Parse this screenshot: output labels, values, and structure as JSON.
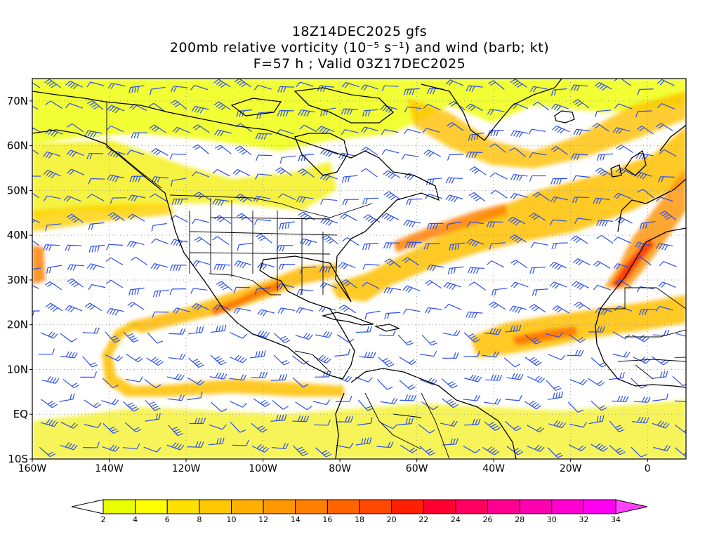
{
  "title": {
    "line1": "18Z14DEC2025 gfs",
    "line2": "200mb relative vorticity (10⁻⁵ s⁻¹) and wind (barb; kt)",
    "line3": "F=57 h ; Valid 03Z17DEC2025"
  },
  "axes": {
    "lat_labels": [
      "70N",
      "60N",
      "50N",
      "40N",
      "30N",
      "20N",
      "10N",
      "EQ",
      "10S"
    ],
    "lat_values": [
      70,
      60,
      50,
      40,
      30,
      20,
      10,
      0,
      -10
    ],
    "lon_labels": [
      "160W",
      "140W",
      "120W",
      "100W",
      "80W",
      "60W",
      "40W",
      "20W",
      "0"
    ],
    "lon_values": [
      -160,
      -140,
      -120,
      -100,
      -80,
      -60,
      -40,
      -20,
      0
    ],
    "lon_range": [
      -160,
      10
    ],
    "lat_range": [
      -10,
      75
    ],
    "grid": "dotted"
  },
  "colorbar": {
    "labels": [
      "2",
      "4",
      "6",
      "8",
      "10",
      "12",
      "14",
      "16",
      "18",
      "20",
      "22",
      "24",
      "26",
      "28",
      "30",
      "32",
      "34"
    ],
    "colors": [
      "#e8ff00",
      "#ffff00",
      "#ffe000",
      "#ffc800",
      "#ffb000",
      "#ff9800",
      "#ff8000",
      "#ff6400",
      "#ff4800",
      "#ff2000",
      "#ff0030",
      "#ff0060",
      "#ff0090",
      "#ff00b0",
      "#ff00d0",
      "#ff00f0"
    ],
    "over_color": "#ff40ff",
    "under_color": "#ffffff"
  },
  "style": {
    "barb_color": "#2b50e8",
    "coast_color": "#000000"
  }
}
